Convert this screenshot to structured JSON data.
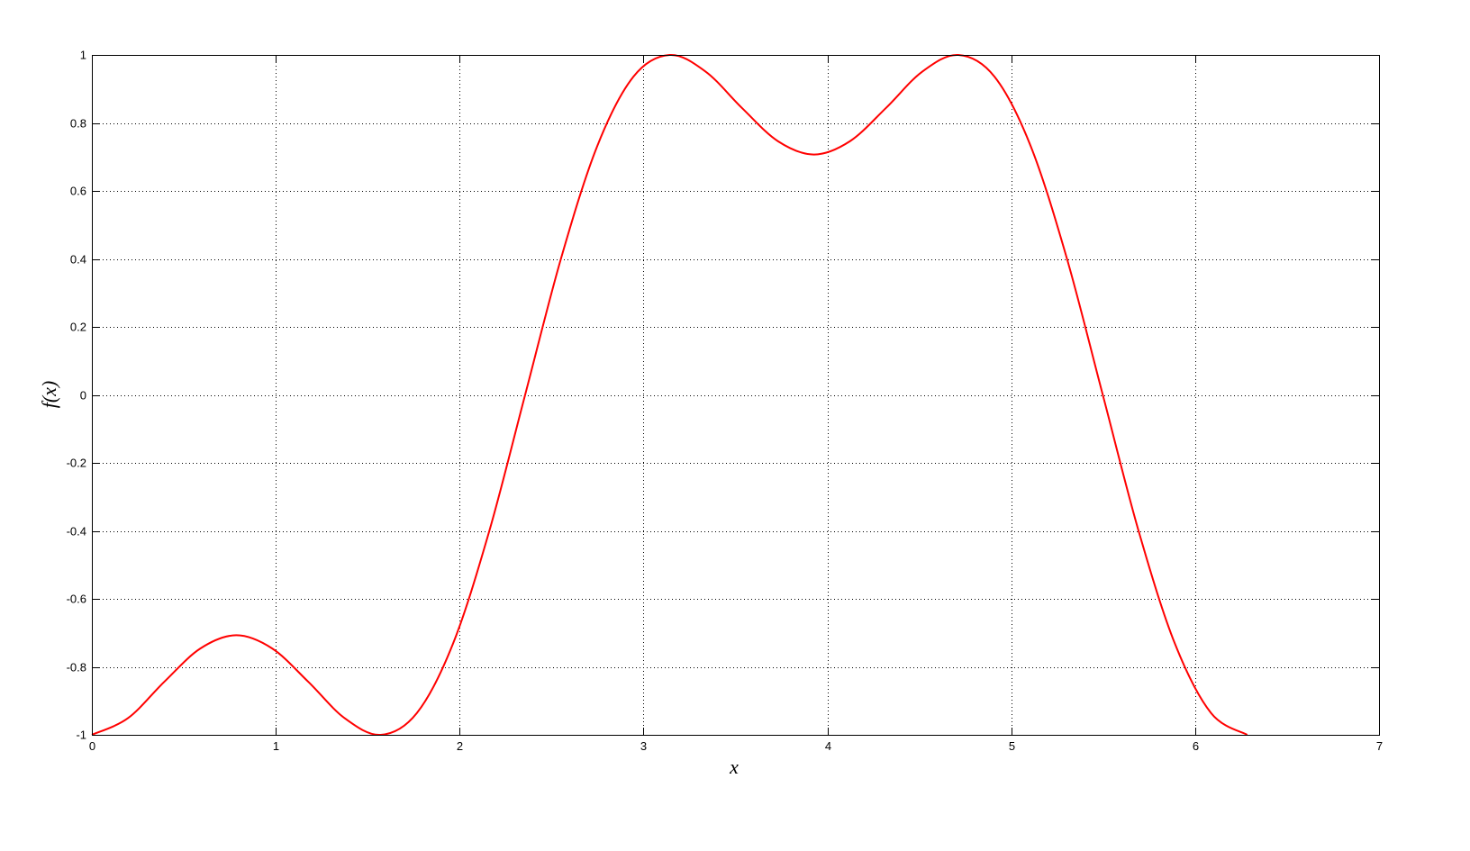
{
  "chart_data": {
    "type": "line",
    "title": "",
    "xlabel": "x",
    "ylabel": "f(x)",
    "xlim": [
      0,
      7
    ],
    "ylim": [
      -1,
      1
    ],
    "xticks": [
      0,
      1,
      2,
      3,
      4,
      5,
      6,
      7
    ],
    "yticks": [
      -1,
      -0.8,
      -0.6,
      -0.4,
      -0.2,
      0,
      0.2,
      0.4,
      0.6,
      0.8,
      1
    ],
    "xtick_labels": [
      "0",
      "1",
      "2",
      "3",
      "4",
      "5",
      "6",
      "7"
    ],
    "ytick_labels": [
      "-1",
      "-0.8",
      "-0.6",
      "-0.4",
      "-0.2",
      "0",
      "0.2",
      "0.4",
      "0.6",
      "0.8",
      "1"
    ],
    "grid": true,
    "grid_style": "dotted",
    "series": [
      {
        "color": "#ff0000",
        "x": [
          0,
          0.1963,
          0.3927,
          0.589,
          0.7854,
          0.9817,
          1.1781,
          1.3744,
          1.5708,
          1.7671,
          1.9635,
          2.1598,
          2.3562,
          2.5525,
          2.7489,
          2.9452,
          3.1416,
          3.3379,
          3.5343,
          3.7306,
          3.927,
          4.1233,
          4.3197,
          4.516,
          4.7124,
          4.9087,
          5.1051,
          5.3014,
          5.4978,
          5.6941,
          5.8905,
          6.0868,
          6.2832
        ],
        "y": [
          -1,
          -0.9509,
          -0.8446,
          -0.7464,
          -0.7071,
          -0.7464,
          -0.8446,
          -0.9509,
          -1,
          -0.9361,
          -0.7326,
          -0.4034,
          0,
          0.4034,
          0.7326,
          0.9361,
          1,
          0.9509,
          0.8446,
          0.7464,
          0.7071,
          0.7464,
          0.8446,
          0.9509,
          1,
          0.9361,
          0.7326,
          0.4034,
          0,
          -0.4034,
          -0.7326,
          -0.9361,
          -1
        ]
      }
    ]
  }
}
